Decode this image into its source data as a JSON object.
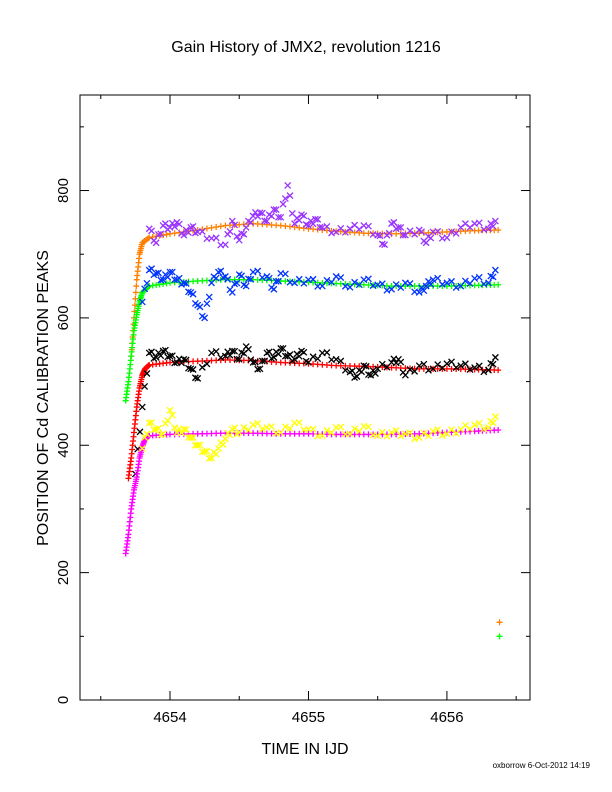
{
  "chart_data": {
    "type": "scatter",
    "title": "Gain History of JMX2, revolution 1216",
    "xlabel": "TIME IN IJD",
    "ylabel": "POSITION OF Cd CALIBRATION PEAKS",
    "xlim": [
      4653.35,
      4656.6
    ],
    "ylim": [
      0,
      950
    ],
    "x_ticks": [
      4654,
      4655,
      4656
    ],
    "x_tick_labels": [
      "4654",
      "4655",
      "4656"
    ],
    "y_ticks": [
      0,
      200,
      400,
      600,
      800
    ],
    "y_tick_labels": [
      "0",
      "200",
      "400",
      "600",
      "800"
    ],
    "grid": false,
    "legend": "none",
    "footer": "oxborrow  6-Oct-2012 14:19",
    "series": [
      {
        "color": "#ff8000",
        "marker": "+",
        "points": [
          [
            4653.72,
            540
          ],
          [
            4653.74,
            600
          ],
          [
            4653.76,
            660
          ],
          [
            4653.78,
            700
          ],
          [
            4653.8,
            718
          ],
          [
            4653.85,
            726
          ],
          [
            4654.0,
            732
          ],
          [
            4654.2,
            738
          ],
          [
            4654.4,
            745
          ],
          [
            4654.6,
            748
          ],
          [
            4654.8,
            745
          ],
          [
            4655.0,
            740
          ],
          [
            4655.2,
            736
          ],
          [
            4655.4,
            733
          ],
          [
            4655.6,
            732
          ],
          [
            4655.8,
            733
          ],
          [
            4656.0,
            735
          ],
          [
            4656.2,
            737
          ],
          [
            4656.37,
            738
          ],
          [
            4656.38,
            122
          ]
        ]
      },
      {
        "color": "#9933ff",
        "marker": "x",
        "points": [
          [
            4653.85,
            740
          ],
          [
            4653.9,
            718
          ],
          [
            4653.95,
            745
          ],
          [
            4654.0,
            742
          ],
          [
            4654.05,
            750
          ],
          [
            4654.1,
            730
          ],
          [
            4654.15,
            742
          ],
          [
            4654.2,
            735
          ],
          [
            4654.3,
            725
          ],
          [
            4654.4,
            715
          ],
          [
            4654.45,
            752
          ],
          [
            4654.5,
            722
          ],
          [
            4654.55,
            742
          ],
          [
            4654.6,
            760
          ],
          [
            4654.65,
            765
          ],
          [
            4654.7,
            752
          ],
          [
            4654.75,
            770
          ],
          [
            4654.8,
            758
          ],
          [
            4654.85,
            808
          ],
          [
            4654.9,
            748
          ],
          [
            4654.95,
            762
          ],
          [
            4655.0,
            745
          ],
          [
            4655.05,
            755
          ],
          [
            4655.1,
            742
          ],
          [
            4655.2,
            735
          ],
          [
            4655.3,
            740
          ],
          [
            4655.4,
            745
          ],
          [
            4655.5,
            730
          ],
          [
            4655.55,
            715
          ],
          [
            4655.6,
            748
          ],
          [
            4655.65,
            742
          ],
          [
            4655.7,
            730
          ],
          [
            4655.8,
            738
          ],
          [
            4655.85,
            718
          ],
          [
            4655.9,
            735
          ],
          [
            4656.0,
            726
          ],
          [
            4656.1,
            742
          ],
          [
            4656.2,
            748
          ],
          [
            4656.3,
            740
          ],
          [
            4656.35,
            752
          ]
        ]
      },
      {
        "color": "#00ff00",
        "marker": "+",
        "points": [
          [
            4653.68,
            470
          ],
          [
            4653.7,
            500
          ],
          [
            4653.72,
            540
          ],
          [
            4653.74,
            580
          ],
          [
            4653.76,
            605
          ],
          [
            4653.78,
            625
          ],
          [
            4653.8,
            640
          ],
          [
            4653.85,
            650
          ],
          [
            4654.0,
            655
          ],
          [
            4654.2,
            658
          ],
          [
            4654.4,
            660
          ],
          [
            4654.6,
            660
          ],
          [
            4654.8,
            658
          ],
          [
            4655.0,
            656
          ],
          [
            4655.2,
            654
          ],
          [
            4655.4,
            652
          ],
          [
            4655.6,
            650
          ],
          [
            4655.8,
            650
          ],
          [
            4656.0,
            650
          ],
          [
            4656.2,
            651
          ],
          [
            4656.37,
            652
          ],
          [
            4656.38,
            100
          ]
        ]
      },
      {
        "color": "#0033ff",
        "marker": "x",
        "points": [
          [
            4653.8,
            625
          ],
          [
            4653.85,
            675
          ],
          [
            4653.9,
            670
          ],
          [
            4653.95,
            660
          ],
          [
            4654.0,
            672
          ],
          [
            4654.05,
            660
          ],
          [
            4654.1,
            655
          ],
          [
            4654.15,
            640
          ],
          [
            4654.2,
            620
          ],
          [
            4654.25,
            600
          ],
          [
            4654.3,
            655
          ],
          [
            4654.35,
            672
          ],
          [
            4654.4,
            665
          ],
          [
            4654.45,
            640
          ],
          [
            4654.5,
            668
          ],
          [
            4654.55,
            650
          ],
          [
            4654.6,
            672
          ],
          [
            4654.7,
            665
          ],
          [
            4654.75,
            645
          ],
          [
            4654.8,
            670
          ],
          [
            4654.9,
            655
          ],
          [
            4655.0,
            660
          ],
          [
            4655.1,
            650
          ],
          [
            4655.2,
            665
          ],
          [
            4655.3,
            648
          ],
          [
            4655.4,
            660
          ],
          [
            4655.5,
            652
          ],
          [
            4655.6,
            645
          ],
          [
            4655.7,
            655
          ],
          [
            4655.8,
            640
          ],
          [
            4655.85,
            650
          ],
          [
            4655.9,
            660
          ],
          [
            4656.0,
            655
          ],
          [
            4656.1,
            650
          ],
          [
            4656.2,
            662
          ],
          [
            4656.3,
            655
          ],
          [
            4656.35,
            675
          ]
        ]
      },
      {
        "color": "#ff0000",
        "marker": "+",
        "points": [
          [
            4653.7,
            348
          ],
          [
            4653.72,
            380
          ],
          [
            4653.74,
            420
          ],
          [
            4653.76,
            460
          ],
          [
            4653.78,
            490
          ],
          [
            4653.8,
            510
          ],
          [
            4653.82,
            520
          ],
          [
            4653.85,
            526
          ],
          [
            4654.0,
            530
          ],
          [
            4654.2,
            532
          ],
          [
            4654.4,
            534
          ],
          [
            4654.6,
            533
          ],
          [
            4654.8,
            530
          ],
          [
            4655.0,
            528
          ],
          [
            4655.2,
            525
          ],
          [
            4655.4,
            524
          ],
          [
            4655.6,
            522
          ],
          [
            4655.8,
            520
          ],
          [
            4656.0,
            520
          ],
          [
            4656.2,
            519
          ],
          [
            4656.37,
            518
          ]
        ]
      },
      {
        "color": "#000000",
        "marker": "x",
        "points": [
          [
            4653.75,
            355
          ],
          [
            4653.8,
            460
          ],
          [
            4653.85,
            545
          ],
          [
            4653.9,
            538
          ],
          [
            4653.95,
            548
          ],
          [
            4654.0,
            540
          ],
          [
            4654.05,
            530
          ],
          [
            4654.1,
            535
          ],
          [
            4654.15,
            520
          ],
          [
            4654.2,
            505
          ],
          [
            4654.3,
            545
          ],
          [
            4654.4,
            540
          ],
          [
            4654.45,
            548
          ],
          [
            4654.5,
            535
          ],
          [
            4654.55,
            555
          ],
          [
            4654.6,
            530
          ],
          [
            4654.65,
            520
          ],
          [
            4654.7,
            545
          ],
          [
            4654.75,
            538
          ],
          [
            4654.8,
            552
          ],
          [
            4654.85,
            540
          ],
          [
            4654.9,
            535
          ],
          [
            4654.95,
            548
          ],
          [
            4655.0,
            530
          ],
          [
            4655.1,
            545
          ],
          [
            4655.2,
            535
          ],
          [
            4655.3,
            515
          ],
          [
            4655.35,
            508
          ],
          [
            4655.4,
            525
          ],
          [
            4655.45,
            510
          ],
          [
            4655.5,
            520
          ],
          [
            4655.6,
            530
          ],
          [
            4655.65,
            535
          ],
          [
            4655.7,
            510
          ],
          [
            4655.8,
            525
          ],
          [
            4655.9,
            520
          ],
          [
            4656.0,
            528
          ],
          [
            4656.1,
            525
          ],
          [
            4656.2,
            522
          ],
          [
            4656.3,
            518
          ],
          [
            4656.35,
            538
          ]
        ]
      },
      {
        "color": "#ff00ff",
        "marker": "+",
        "points": [
          [
            4653.68,
            230
          ],
          [
            4653.7,
            260
          ],
          [
            4653.72,
            300
          ],
          [
            4653.74,
            330
          ],
          [
            4653.76,
            350
          ],
          [
            4653.78,
            380
          ],
          [
            4653.8,
            398
          ],
          [
            4653.82,
            410
          ],
          [
            4653.85,
            415
          ],
          [
            4654.0,
            417
          ],
          [
            4654.2,
            418
          ],
          [
            4654.4,
            419
          ],
          [
            4654.6,
            419
          ],
          [
            4654.8,
            418
          ],
          [
            4655.0,
            418
          ],
          [
            4655.2,
            417
          ],
          [
            4655.4,
            417
          ],
          [
            4655.6,
            417
          ],
          [
            4655.8,
            418
          ],
          [
            4656.0,
            420
          ],
          [
            4656.2,
            422
          ],
          [
            4656.37,
            424
          ]
        ]
      },
      {
        "color": "#ffff00",
        "marker": "x",
        "points": [
          [
            4653.8,
            395
          ],
          [
            4653.85,
            435
          ],
          [
            4653.9,
            425
          ],
          [
            4653.95,
            418
          ],
          [
            4654.0,
            455
          ],
          [
            4654.05,
            420
          ],
          [
            4654.1,
            425
          ],
          [
            4654.15,
            412
          ],
          [
            4654.2,
            400
          ],
          [
            4654.25,
            390
          ],
          [
            4654.3,
            380
          ],
          [
            4654.35,
            395
          ],
          [
            4654.4,
            410
          ],
          [
            4654.45,
            425
          ],
          [
            4654.5,
            420
          ],
          [
            4654.6,
            432
          ],
          [
            4654.7,
            428
          ],
          [
            4654.8,
            420
          ],
          [
            4654.9,
            435
          ],
          [
            4655.0,
            425
          ],
          [
            4655.1,
            415
          ],
          [
            4655.2,
            428
          ],
          [
            4655.3,
            418
          ],
          [
            4655.4,
            430
          ],
          [
            4655.5,
            415
          ],
          [
            4655.6,
            420
          ],
          [
            4655.7,
            418
          ],
          [
            4655.8,
            412
          ],
          [
            4655.9,
            422
          ],
          [
            4656.0,
            418
          ],
          [
            4656.1,
            425
          ],
          [
            4656.2,
            432
          ],
          [
            4656.3,
            428
          ],
          [
            4656.35,
            445
          ]
        ]
      }
    ]
  }
}
